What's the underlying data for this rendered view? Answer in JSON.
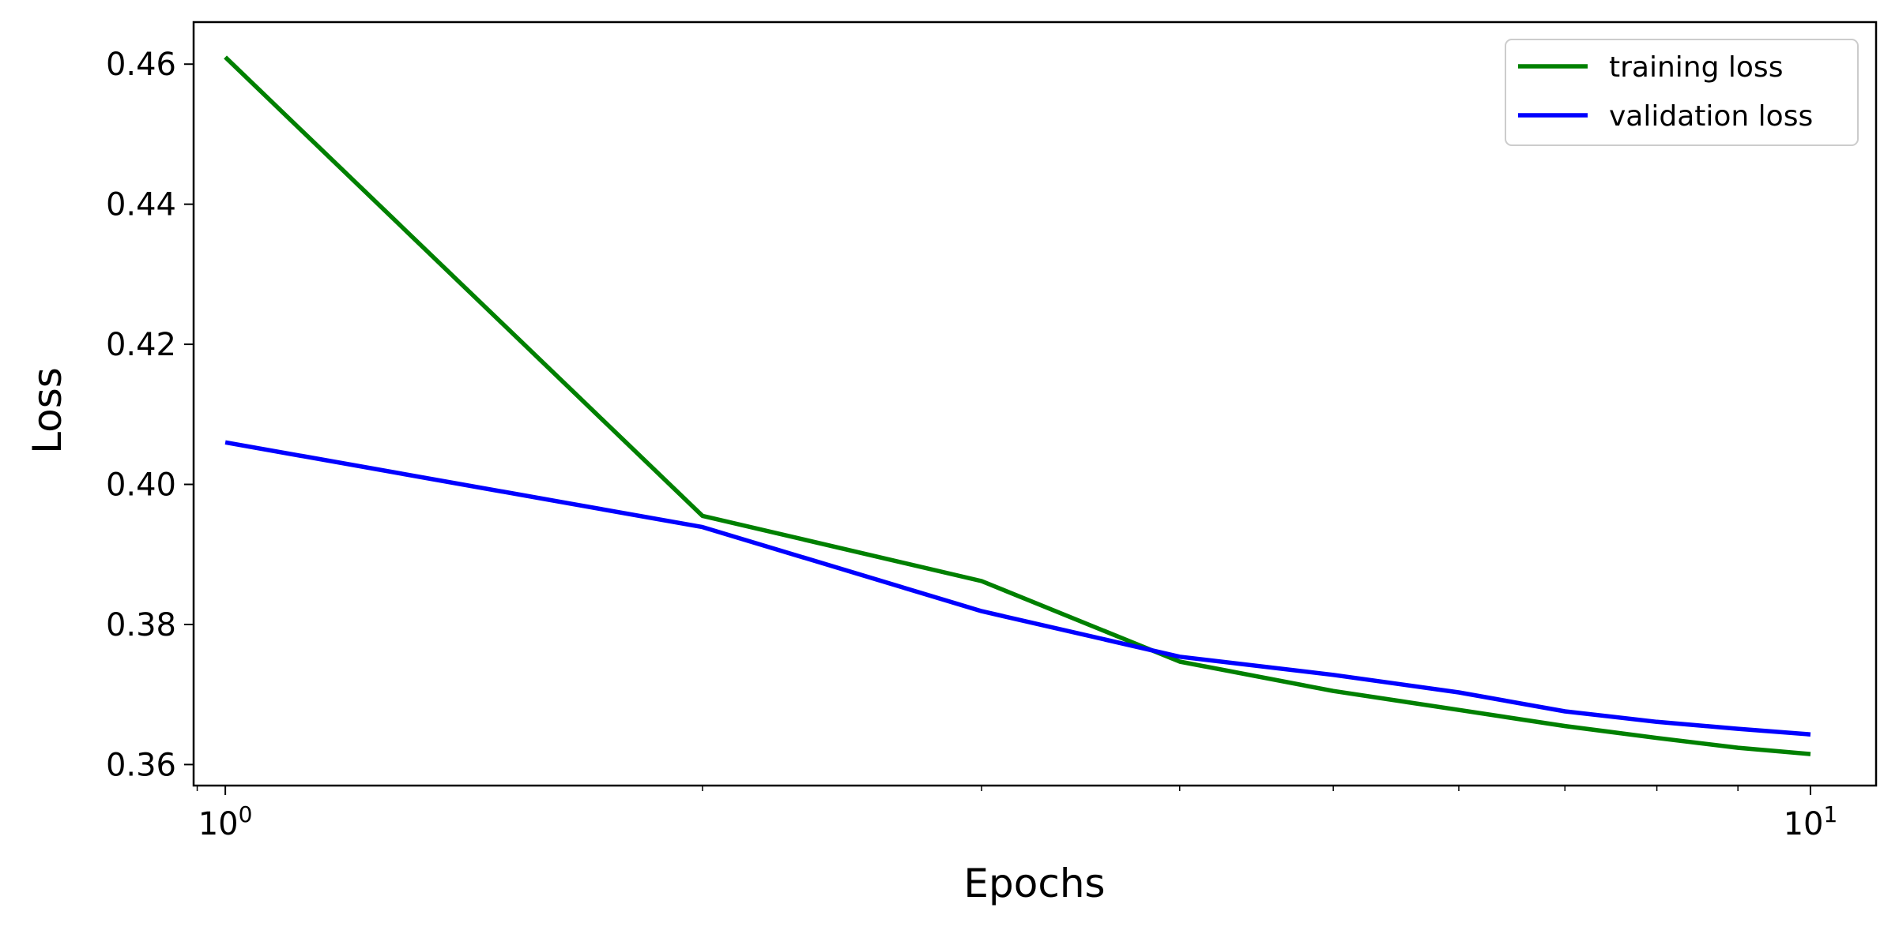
{
  "chart_data": {
    "type": "line",
    "title": "",
    "xlabel": "Epochs",
    "ylabel": "Loss",
    "xscale": "log",
    "xlim": [
      0.955,
      11.0
    ],
    "ylim": [
      0.357,
      0.466
    ],
    "grid": false,
    "legend_position": "upper right",
    "x": [
      1,
      2,
      3,
      4,
      5,
      6,
      7,
      8,
      9,
      10
    ],
    "series": [
      {
        "name": "training loss",
        "color": "#008000",
        "values": [
          0.461,
          0.3955,
          0.3862,
          0.3747,
          0.3705,
          0.3678,
          0.3655,
          0.3638,
          0.3624,
          0.3615
        ]
      },
      {
        "name": "validation loss",
        "color": "#0000ff",
        "values": [
          0.406,
          0.3939,
          0.3819,
          0.3754,
          0.3728,
          0.3703,
          0.3676,
          0.3661,
          0.3651,
          0.3643
        ]
      }
    ],
    "yticks": [
      {
        "value": 0.36,
        "label": "0.36"
      },
      {
        "value": 0.38,
        "label": "0.38"
      },
      {
        "value": 0.4,
        "label": "0.40"
      },
      {
        "value": 0.42,
        "label": "0.42"
      },
      {
        "value": 0.44,
        "label": "0.44"
      },
      {
        "value": 0.46,
        "label": "0.46"
      }
    ],
    "xticks_major": [
      {
        "value": 1,
        "base": "10",
        "exp": "0"
      },
      {
        "value": 10,
        "base": "10",
        "exp": "1"
      }
    ],
    "xticks_minor": [
      0.96,
      2,
      3,
      4,
      5,
      6,
      7,
      8,
      9
    ]
  }
}
